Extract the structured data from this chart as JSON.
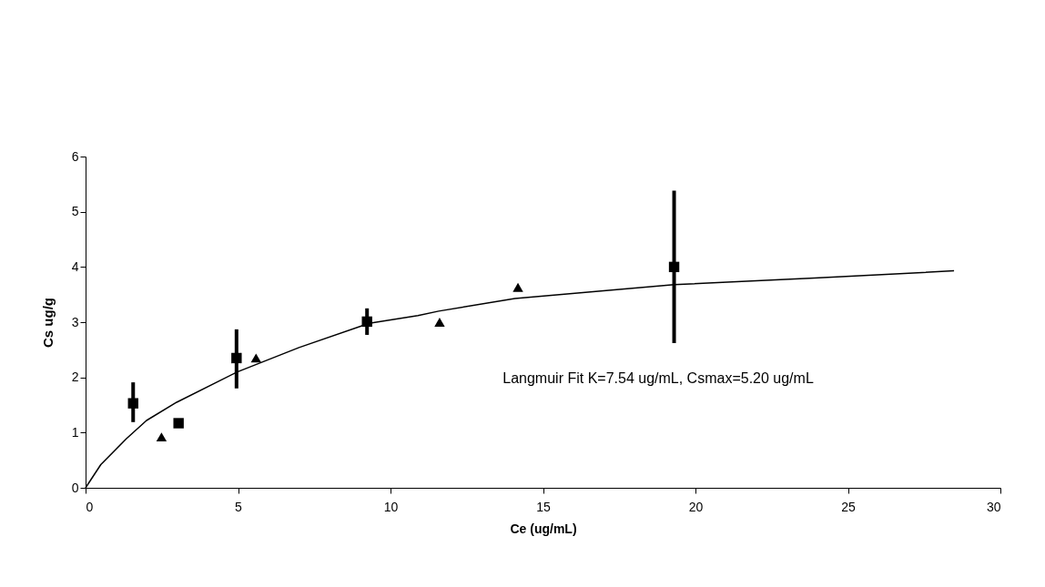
{
  "chart_data": {
    "type": "scatter",
    "xlabel": "Ce (ug/mL)",
    "ylabel": "Cs ug/g",
    "xlim": [
      0,
      30
    ],
    "ylim": [
      0,
      6
    ],
    "xticks": [
      0,
      5,
      10,
      15,
      20,
      25,
      30
    ],
    "yticks": [
      0,
      1,
      2,
      3,
      4,
      5,
      6
    ],
    "grid": false,
    "series": [
      {
        "marker": "square",
        "color": "#000000",
        "x": [
          1.56,
          3.05,
          4.95,
          9.23,
          19.3
        ],
        "values": [
          1.53,
          1.17,
          2.35,
          3.01,
          4.0
        ],
        "errors": [
          [
            1.19,
            1.91
          ],
          null,
          [
            1.8,
            2.87
          ],
          [
            2.77,
            3.25
          ],
          [
            2.62,
            5.38
          ]
        ]
      },
      {
        "marker": "triangle",
        "color": "#000000",
        "x": [
          2.49,
          5.59,
          11.61,
          14.18
        ],
        "values": [
          0.92,
          2.35,
          3.0,
          3.63
        ]
      },
      {
        "type": "line",
        "marker": "none",
        "color": "#000000",
        "x": [
          0,
          0.5,
          1.34,
          2,
          2.99,
          4.98,
          7,
          9.3,
          10.9,
          11.58,
          14.08,
          19.3,
          23.9,
          28.48
        ],
        "values": [
          0,
          0.42,
          0.89,
          1.22,
          1.55,
          2.1,
          2.54,
          2.98,
          3.12,
          3.2,
          3.43,
          3.68,
          3.8,
          3.93
        ]
      }
    ],
    "annotations": [
      "Langmuir Fit K=7.54 ug/mL, Csmax=5.20 ug/mL"
    ]
  }
}
